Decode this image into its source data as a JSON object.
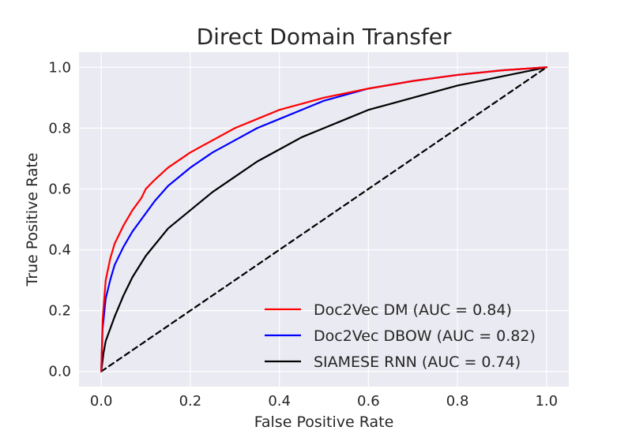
{
  "chart_data": {
    "type": "line",
    "title": "Direct Domain Transfer",
    "xlabel": "False Positive Rate",
    "ylabel": "True Positive Rate",
    "xlim": [
      -0.05,
      1.05
    ],
    "ylim": [
      -0.05,
      1.05
    ],
    "xticks": [
      0.0,
      0.2,
      0.4,
      0.6,
      0.8,
      1.0
    ],
    "yticks": [
      0.0,
      0.2,
      0.4,
      0.6,
      0.8,
      1.0
    ],
    "xtick_labels": [
      "0.0",
      "0.2",
      "0.4",
      "0.6",
      "0.8",
      "1.0"
    ],
    "ytick_labels": [
      "0.0",
      "0.2",
      "0.4",
      "0.6",
      "0.8",
      "1.0"
    ],
    "grid": true,
    "background": "#eaeaf2",
    "legend_position": "lower-right",
    "series": [
      {
        "name": "Doc2Vec DM (AUC = 0.84)",
        "color": "#ff0000",
        "style": "solid",
        "x": [
          0.0,
          0.003,
          0.01,
          0.02,
          0.03,
          0.05,
          0.07,
          0.09,
          0.1,
          0.12,
          0.15,
          0.2,
          0.25,
          0.3,
          0.35,
          0.4,
          0.45,
          0.5,
          0.6,
          0.7,
          0.8,
          0.9,
          1.0
        ],
        "y": [
          0.0,
          0.17,
          0.3,
          0.37,
          0.42,
          0.48,
          0.53,
          0.57,
          0.6,
          0.63,
          0.67,
          0.72,
          0.76,
          0.8,
          0.83,
          0.86,
          0.88,
          0.9,
          0.93,
          0.955,
          0.975,
          0.99,
          1.0
        ]
      },
      {
        "name": "Doc2Vec DBOW (AUC = 0.82)",
        "color": "#0000ff",
        "style": "solid",
        "x": [
          0.0,
          0.003,
          0.01,
          0.02,
          0.03,
          0.05,
          0.07,
          0.09,
          0.1,
          0.12,
          0.15,
          0.2,
          0.25,
          0.3,
          0.35,
          0.4,
          0.45,
          0.5,
          0.6,
          0.7,
          0.8,
          0.9,
          1.0
        ],
        "y": [
          0.0,
          0.14,
          0.24,
          0.3,
          0.35,
          0.41,
          0.46,
          0.5,
          0.52,
          0.56,
          0.61,
          0.67,
          0.72,
          0.76,
          0.8,
          0.83,
          0.86,
          0.89,
          0.93,
          0.955,
          0.975,
          0.99,
          1.0
        ]
      },
      {
        "name": "SIAMESE RNN (AUC = 0.74)",
        "color": "#000000",
        "style": "solid",
        "x": [
          0.0,
          0.005,
          0.01,
          0.02,
          0.03,
          0.05,
          0.07,
          0.1,
          0.15,
          0.2,
          0.25,
          0.3,
          0.35,
          0.4,
          0.45,
          0.5,
          0.55,
          0.6,
          0.65,
          0.7,
          0.8,
          0.9,
          1.0
        ],
        "y": [
          0.0,
          0.06,
          0.1,
          0.14,
          0.18,
          0.25,
          0.31,
          0.38,
          0.47,
          0.53,
          0.59,
          0.64,
          0.69,
          0.73,
          0.77,
          0.8,
          0.83,
          0.86,
          0.88,
          0.9,
          0.94,
          0.97,
          1.0
        ]
      },
      {
        "name": "",
        "color": "#000000",
        "style": "dashed",
        "x": [
          0.0,
          1.0
        ],
        "y": [
          0.0,
          1.0
        ]
      }
    ]
  }
}
